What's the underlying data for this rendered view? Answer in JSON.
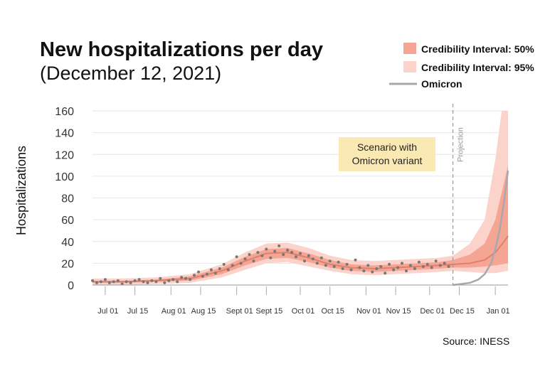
{
  "chart_data": {
    "type": "line",
    "title": "New hospitalizations per day",
    "subtitle": "(December 12, 2021)",
    "ylabel": "Hospitalizations",
    "xlabel": "",
    "ylim": [
      0,
      160
    ],
    "yticks": [
      0,
      20,
      40,
      60,
      80,
      100,
      120,
      140,
      160
    ],
    "x_start": "2021-06-25",
    "x_end": "2022-01-07",
    "xtick_labels": [
      "Jul 01",
      "Jul 15",
      "Aug 01",
      "Aug 15",
      "Sept 01",
      "Sept 15",
      "Oct 01",
      "Oct 15",
      "Nov 01",
      "Nov 15",
      "Dec 01",
      "Dec 15",
      "Jan 01"
    ],
    "xtick_dates": [
      "2021-07-01",
      "2021-07-15",
      "2021-08-01",
      "2021-08-15",
      "2021-09-01",
      "2021-09-15",
      "2021-10-01",
      "2021-10-15",
      "2021-11-01",
      "2021-11-15",
      "2021-12-01",
      "2021-12-15",
      "2022-01-01"
    ],
    "grid": "horizontal",
    "legend_position": "top-right",
    "legend": [
      {
        "label": "Credibility Interval: 50%",
        "color": "#f4a594"
      },
      {
        "label": "Credibility Interval: 95%",
        "color": "#fbd3cb"
      },
      {
        "label": "Omicron",
        "color": "#a8a8b0"
      }
    ],
    "projection_start": "2021-12-12",
    "projection_label": "Projection",
    "annotation": [
      "Scenario with",
      "Omicron variant"
    ],
    "source": "Source:  INESS",
    "colors": {
      "ci95": "#fbd3cb",
      "ci50": "#f4a594",
      "median": "#e0806c",
      "omicron": "#a8a8b0",
      "points": "#777777",
      "annotation_bg": "#fbe9b4"
    },
    "series": [
      {
        "name": "Median",
        "x": [
          "2021-06-25",
          "2021-07-10",
          "2021-07-25",
          "2021-08-10",
          "2021-08-25",
          "2021-09-05",
          "2021-09-15",
          "2021-09-25",
          "2021-10-05",
          "2021-10-15",
          "2021-10-25",
          "2021-11-05",
          "2021-11-15",
          "2021-11-25",
          "2021-12-05",
          "2021-12-12",
          "2021-12-20",
          "2021-12-27",
          "2022-01-01",
          "2022-01-04",
          "2022-01-07"
        ],
        "y": [
          3,
          3,
          4,
          6,
          13,
          22,
          29,
          30,
          25,
          19,
          16,
          15,
          16,
          17,
          18,
          19,
          20,
          23,
          30,
          37,
          45
        ]
      },
      {
        "name": "Credibility Interval: 50%",
        "x": [
          "2021-06-25",
          "2021-07-10",
          "2021-07-25",
          "2021-08-10",
          "2021-08-25",
          "2021-09-05",
          "2021-09-15",
          "2021-09-25",
          "2021-10-05",
          "2021-10-15",
          "2021-10-25",
          "2021-11-05",
          "2021-11-15",
          "2021-11-25",
          "2021-12-05",
          "2021-12-12",
          "2021-12-20",
          "2021-12-27",
          "2022-01-01",
          "2022-01-04",
          "2022-01-07"
        ],
        "low": [
          2,
          2,
          3,
          4,
          10,
          18,
          24,
          25,
          21,
          16,
          13,
          12,
          13,
          14,
          15,
          16,
          16,
          17,
          18,
          19,
          20
        ],
        "high": [
          4,
          4,
          5,
          8,
          16,
          26,
          33,
          34,
          29,
          23,
          19,
          18,
          19,
          20,
          21,
          23,
          28,
          38,
          60,
          85,
          110
        ]
      },
      {
        "name": "Credibility Interval: 95%",
        "x": [
          "2021-06-25",
          "2021-07-10",
          "2021-07-25",
          "2021-08-10",
          "2021-08-25",
          "2021-09-05",
          "2021-09-15",
          "2021-09-25",
          "2021-10-05",
          "2021-10-15",
          "2021-10-25",
          "2021-11-05",
          "2021-11-15",
          "2021-11-25",
          "2021-12-05",
          "2021-12-12",
          "2021-12-20",
          "2021-12-27",
          "2022-01-01",
          "2022-01-04",
          "2022-01-07"
        ],
        "low": [
          0,
          0,
          1,
          2,
          7,
          14,
          20,
          21,
          17,
          13,
          10,
          9,
          10,
          11,
          12,
          13,
          12,
          11,
          11,
          12,
          13
        ],
        "high": [
          6,
          6,
          7,
          10,
          19,
          30,
          38,
          39,
          34,
          27,
          23,
          22,
          23,
          24,
          25,
          27,
          38,
          60,
          115,
          160,
          160
        ]
      },
      {
        "name": "Omicron",
        "x": [
          "2021-12-12",
          "2021-12-16",
          "2021-12-20",
          "2021-12-24",
          "2021-12-27",
          "2021-12-30",
          "2022-01-01",
          "2022-01-03",
          "2022-01-05",
          "2022-01-07"
        ],
        "y": [
          0,
          1,
          2,
          5,
          10,
          20,
          33,
          50,
          75,
          105
        ]
      },
      {
        "name": "Observed",
        "x": [
          "2021-06-25",
          "2021-06-27",
          "2021-06-29",
          "2021-07-01",
          "2021-07-03",
          "2021-07-05",
          "2021-07-07",
          "2021-07-09",
          "2021-07-11",
          "2021-07-13",
          "2021-07-15",
          "2021-07-17",
          "2021-07-19",
          "2021-07-21",
          "2021-07-23",
          "2021-07-25",
          "2021-07-27",
          "2021-07-29",
          "2021-07-31",
          "2021-08-02",
          "2021-08-04",
          "2021-08-06",
          "2021-08-08",
          "2021-08-10",
          "2021-08-12",
          "2021-08-14",
          "2021-08-16",
          "2021-08-18",
          "2021-08-20",
          "2021-08-22",
          "2021-08-24",
          "2021-08-26",
          "2021-08-28",
          "2021-08-30",
          "2021-09-01",
          "2021-09-03",
          "2021-09-05",
          "2021-09-07",
          "2021-09-09",
          "2021-09-11",
          "2021-09-13",
          "2021-09-15",
          "2021-09-17",
          "2021-09-19",
          "2021-09-21",
          "2021-09-23",
          "2021-09-25",
          "2021-09-27",
          "2021-09-29",
          "2021-10-01",
          "2021-10-03",
          "2021-10-05",
          "2021-10-07",
          "2021-10-09",
          "2021-10-11",
          "2021-10-13",
          "2021-10-15",
          "2021-10-17",
          "2021-10-19",
          "2021-10-21",
          "2021-10-23",
          "2021-10-25",
          "2021-10-27",
          "2021-10-29",
          "2021-10-31",
          "2021-11-02",
          "2021-11-04",
          "2021-11-06",
          "2021-11-08",
          "2021-11-10",
          "2021-11-12",
          "2021-11-14",
          "2021-11-16",
          "2021-11-18",
          "2021-11-20",
          "2021-11-22",
          "2021-11-24",
          "2021-11-26",
          "2021-11-28",
          "2021-11-30",
          "2021-12-02",
          "2021-12-04",
          "2021-12-06",
          "2021-12-08",
          "2021-12-10"
        ],
        "y": [
          4,
          2,
          3,
          5,
          2,
          3,
          4,
          1,
          3,
          2,
          4,
          5,
          3,
          2,
          4,
          3,
          6,
          2,
          4,
          5,
          3,
          7,
          6,
          5,
          9,
          12,
          8,
          10,
          14,
          11,
          15,
          19,
          14,
          18,
          26,
          20,
          24,
          28,
          22,
          30,
          27,
          33,
          25,
          31,
          36,
          28,
          32,
          30,
          26,
          29,
          22,
          27,
          24,
          20,
          25,
          18,
          22,
          17,
          21,
          15,
          19,
          14,
          23,
          16,
          13,
          18,
          12,
          15,
          17,
          11,
          19,
          14,
          16,
          20,
          13,
          18,
          15,
          21,
          17,
          19,
          16,
          22,
          18,
          20,
          17
        ]
      }
    ]
  }
}
